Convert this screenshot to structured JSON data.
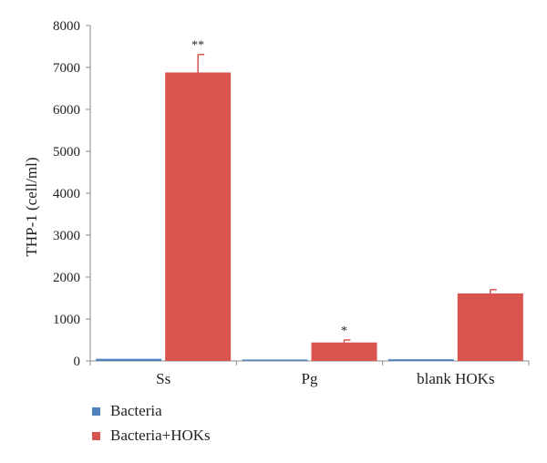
{
  "chart_data": {
    "type": "bar",
    "categories": [
      "Ss",
      "Pg",
      "blank HOKs"
    ],
    "series": [
      {
        "name": "Bacteria",
        "color": "#4f81bd",
        "values": [
          50,
          20,
          40
        ]
      },
      {
        "name": "Bacteria+HOKs",
        "color": "#d9534f",
        "values": [
          6880,
          440,
          1610
        ],
        "error": [
          430,
          60,
          90
        ]
      }
    ],
    "annotations": [
      "**",
      "*",
      ""
    ],
    "ylabel": "THP-1 (cell/ml)",
    "xlabel": "",
    "ylim": [
      0,
      8000
    ],
    "yticks": [
      0,
      1000,
      2000,
      3000,
      4000,
      5000,
      6000,
      7000,
      8000
    ],
    "grid": false,
    "legend_position": "bottom-left"
  }
}
